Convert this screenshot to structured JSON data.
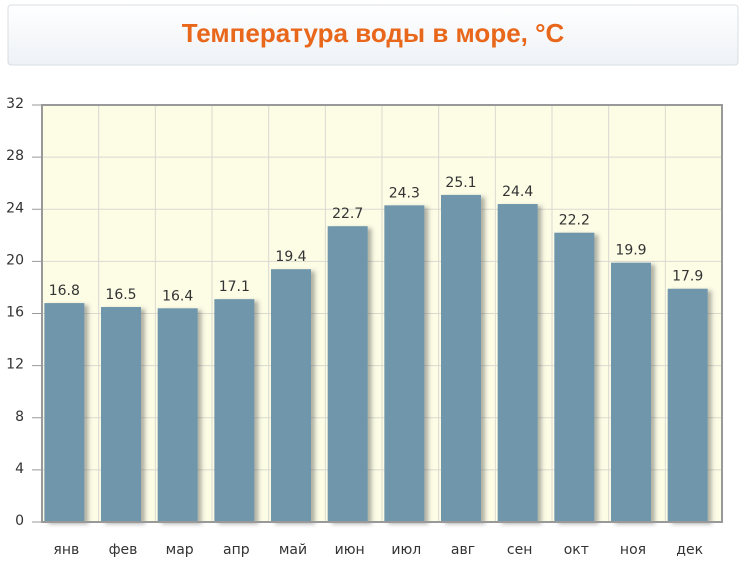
{
  "chart_data": {
    "type": "bar",
    "title": "Температура воды в море, °C",
    "categories": [
      "янв",
      "фев",
      "мар",
      "апр",
      "май",
      "июн",
      "июл",
      "авг",
      "сен",
      "окт",
      "ноя",
      "дек"
    ],
    "values": [
      16.8,
      16.5,
      16.4,
      17.1,
      19.4,
      22.7,
      24.3,
      25.1,
      24.4,
      22.2,
      19.9,
      17.9
    ],
    "color": "#7096ab",
    "ylim": [
      0,
      32
    ],
    "yticks": [
      0,
      4,
      8,
      12,
      16,
      20,
      24,
      28,
      32
    ],
    "grid": true
  }
}
